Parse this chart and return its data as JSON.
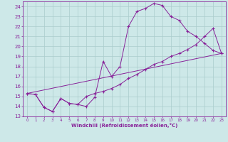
{
  "xlabel": "Windchill (Refroidissement éolien,°C)",
  "background_color": "#cde8e8",
  "grid_color": "#aacccc",
  "line_color": "#882299",
  "xlim": [
    -0.5,
    23.5
  ],
  "ylim": [
    13,
    24.5
  ],
  "xticks": [
    0,
    1,
    2,
    3,
    4,
    5,
    6,
    7,
    8,
    9,
    10,
    11,
    12,
    13,
    14,
    15,
    16,
    17,
    18,
    19,
    20,
    21,
    22,
    23
  ],
  "yticks": [
    13,
    14,
    15,
    16,
    17,
    18,
    19,
    20,
    21,
    22,
    23,
    24
  ],
  "line1_x": [
    0,
    1,
    2,
    3,
    4,
    5,
    6,
    7,
    8,
    9,
    10,
    11,
    12,
    13,
    14,
    15,
    16,
    17,
    18,
    19,
    20,
    21,
    22,
    23
  ],
  "line1_y": [
    15.3,
    15.2,
    13.9,
    13.5,
    14.8,
    14.3,
    14.2,
    14.0,
    14.9,
    18.5,
    17.0,
    18.0,
    22.0,
    23.5,
    23.8,
    24.3,
    24.1,
    23.0,
    22.6,
    21.5,
    21.0,
    20.3,
    19.6,
    19.3
  ],
  "line2_x": [
    0,
    1,
    2,
    3,
    4,
    5,
    6,
    7,
    8,
    9,
    10,
    11,
    12,
    13,
    14,
    15,
    16,
    17,
    18,
    19,
    20,
    21,
    22,
    23
  ],
  "line2_y": [
    15.3,
    15.2,
    13.9,
    13.5,
    14.8,
    14.3,
    14.2,
    15.0,
    15.3,
    15.5,
    15.8,
    16.2,
    16.8,
    17.2,
    17.7,
    18.2,
    18.5,
    19.0,
    19.3,
    19.7,
    20.2,
    21.0,
    21.8,
    19.3
  ],
  "line3_x": [
    0,
    23
  ],
  "line3_y": [
    15.3,
    19.3
  ],
  "marker": "+"
}
